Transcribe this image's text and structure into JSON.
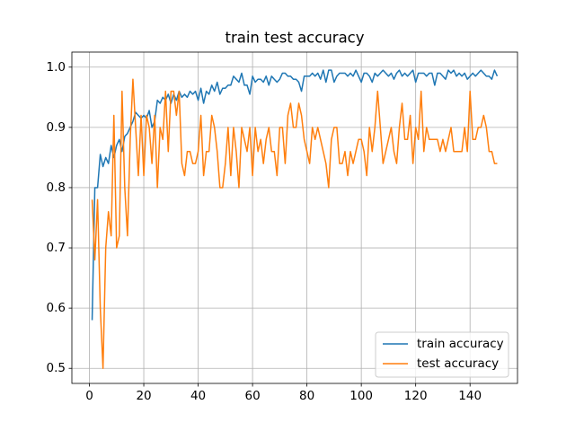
{
  "chart_data": {
    "type": "line",
    "title": "train test accuracy",
    "x": [
      1,
      2,
      3,
      4,
      5,
      6,
      7,
      8,
      9,
      10,
      11,
      12,
      13,
      14,
      15,
      16,
      17,
      18,
      19,
      20,
      21,
      22,
      23,
      24,
      25,
      26,
      27,
      28,
      29,
      30,
      31,
      32,
      33,
      34,
      35,
      36,
      37,
      38,
      39,
      40,
      41,
      42,
      43,
      44,
      45,
      46,
      47,
      48,
      49,
      50,
      51,
      52,
      53,
      54,
      55,
      56,
      57,
      58,
      59,
      60,
      61,
      62,
      63,
      64,
      65,
      66,
      67,
      68,
      69,
      70,
      71,
      72,
      73,
      74,
      75,
      76,
      77,
      78,
      79,
      80,
      81,
      82,
      83,
      84,
      85,
      86,
      87,
      88,
      89,
      90,
      91,
      92,
      93,
      94,
      95,
      96,
      97,
      98,
      99,
      100,
      101,
      102,
      103,
      104,
      105,
      106,
      107,
      108,
      109,
      110,
      111,
      112,
      113,
      114,
      115,
      116,
      117,
      118,
      119,
      120,
      121,
      122,
      123,
      124,
      125,
      126,
      127,
      128,
      129,
      130,
      131,
      132,
      133,
      134,
      135,
      136,
      137,
      138,
      139,
      140,
      141,
      142,
      143,
      144,
      145,
      146,
      147,
      148,
      149,
      150
    ],
    "series": [
      {
        "name": "train accuracy",
        "color": "#1f77b4",
        "values": [
          0.58,
          0.8,
          0.8,
          0.855,
          0.835,
          0.85,
          0.84,
          0.87,
          0.85,
          0.87,
          0.88,
          0.86,
          0.885,
          0.89,
          0.9,
          0.91,
          0.925,
          0.92,
          0.915,
          0.92,
          0.915,
          0.928,
          0.9,
          0.91,
          0.945,
          0.94,
          0.95,
          0.945,
          0.955,
          0.94,
          0.955,
          0.945,
          0.96,
          0.95,
          0.955,
          0.95,
          0.96,
          0.955,
          0.96,
          0.945,
          0.965,
          0.94,
          0.96,
          0.955,
          0.97,
          0.96,
          0.975,
          0.955,
          0.965,
          0.965,
          0.97,
          0.97,
          0.985,
          0.98,
          0.975,
          0.99,
          0.97,
          0.97,
          0.955,
          0.985,
          0.975,
          0.98,
          0.98,
          0.975,
          0.985,
          0.97,
          0.985,
          0.98,
          0.975,
          0.98,
          0.99,
          0.99,
          0.985,
          0.985,
          0.98,
          0.98,
          0.975,
          0.96,
          0.985,
          0.985,
          0.985,
          0.99,
          0.985,
          0.99,
          0.98,
          0.995,
          0.975,
          0.995,
          0.995,
          0.975,
          0.985,
          0.99,
          0.99,
          0.99,
          0.985,
          0.99,
          0.985,
          0.995,
          0.985,
          0.975,
          0.99,
          0.99,
          0.985,
          0.975,
          0.99,
          0.985,
          0.99,
          0.995,
          0.99,
          0.985,
          0.99,
          0.98,
          0.99,
          0.995,
          0.985,
          0.99,
          0.985,
          0.99,
          0.995,
          0.975,
          0.99,
          0.99,
          0.99,
          0.985,
          0.99,
          0.99,
          0.97,
          0.99,
          0.99,
          0.985,
          0.98,
          0.995,
          0.99,
          0.995,
          0.985,
          0.99,
          0.985,
          0.99,
          0.98,
          0.985,
          0.99,
          0.985,
          0.99,
          0.995,
          0.99,
          0.985,
          0.985,
          0.98,
          0.995,
          0.985
        ]
      },
      {
        "name": "test accuracy",
        "color": "#ff7f0e",
        "values": [
          0.78,
          0.68,
          0.78,
          0.6,
          0.5,
          0.7,
          0.76,
          0.72,
          0.92,
          0.7,
          0.72,
          0.96,
          0.8,
          0.72,
          0.88,
          0.98,
          0.9,
          0.82,
          0.92,
          0.82,
          0.92,
          0.9,
          0.84,
          0.92,
          0.8,
          0.9,
          0.88,
          0.96,
          0.86,
          0.96,
          0.96,
          0.92,
          0.96,
          0.84,
          0.82,
          0.86,
          0.86,
          0.84,
          0.84,
          0.86,
          0.92,
          0.82,
          0.86,
          0.86,
          0.92,
          0.9,
          0.86,
          0.8,
          0.8,
          0.84,
          0.9,
          0.82,
          0.9,
          0.86,
          0.8,
          0.9,
          0.88,
          0.86,
          0.9,
          0.82,
          0.9,
          0.86,
          0.88,
          0.84,
          0.88,
          0.9,
          0.86,
          0.86,
          0.82,
          0.9,
          0.9,
          0.84,
          0.92,
          0.94,
          0.9,
          0.9,
          0.94,
          0.92,
          0.88,
          0.86,
          0.84,
          0.9,
          0.88,
          0.9,
          0.88,
          0.86,
          0.84,
          0.8,
          0.88,
          0.9,
          0.9,
          0.84,
          0.84,
          0.86,
          0.82,
          0.86,
          0.84,
          0.86,
          0.88,
          0.88,
          0.86,
          0.82,
          0.9,
          0.86,
          0.9,
          0.96,
          0.9,
          0.84,
          0.86,
          0.88,
          0.9,
          0.86,
          0.84,
          0.9,
          0.94,
          0.88,
          0.88,
          0.92,
          0.84,
          0.9,
          0.88,
          0.96,
          0.86,
          0.9,
          0.88,
          0.88,
          0.88,
          0.88,
          0.86,
          0.88,
          0.86,
          0.88,
          0.9,
          0.86,
          0.86,
          0.86,
          0.86,
          0.9,
          0.86,
          0.96,
          0.88,
          0.88,
          0.9,
          0.9,
          0.92,
          0.9,
          0.86,
          0.86,
          0.84,
          0.84
        ]
      }
    ],
    "xlim": [
      -6.45,
      157.45
    ],
    "xticks": [
      0,
      20,
      40,
      60,
      80,
      100,
      120,
      140
    ],
    "ylim": [
      0.475,
      1.025
    ],
    "yticks": [
      0.5,
      0.6,
      0.7,
      0.8,
      0.9,
      {
        "value": 1,
        "label": "1.0"
      }
    ],
    "grid": true,
    "legend": "lower right"
  }
}
